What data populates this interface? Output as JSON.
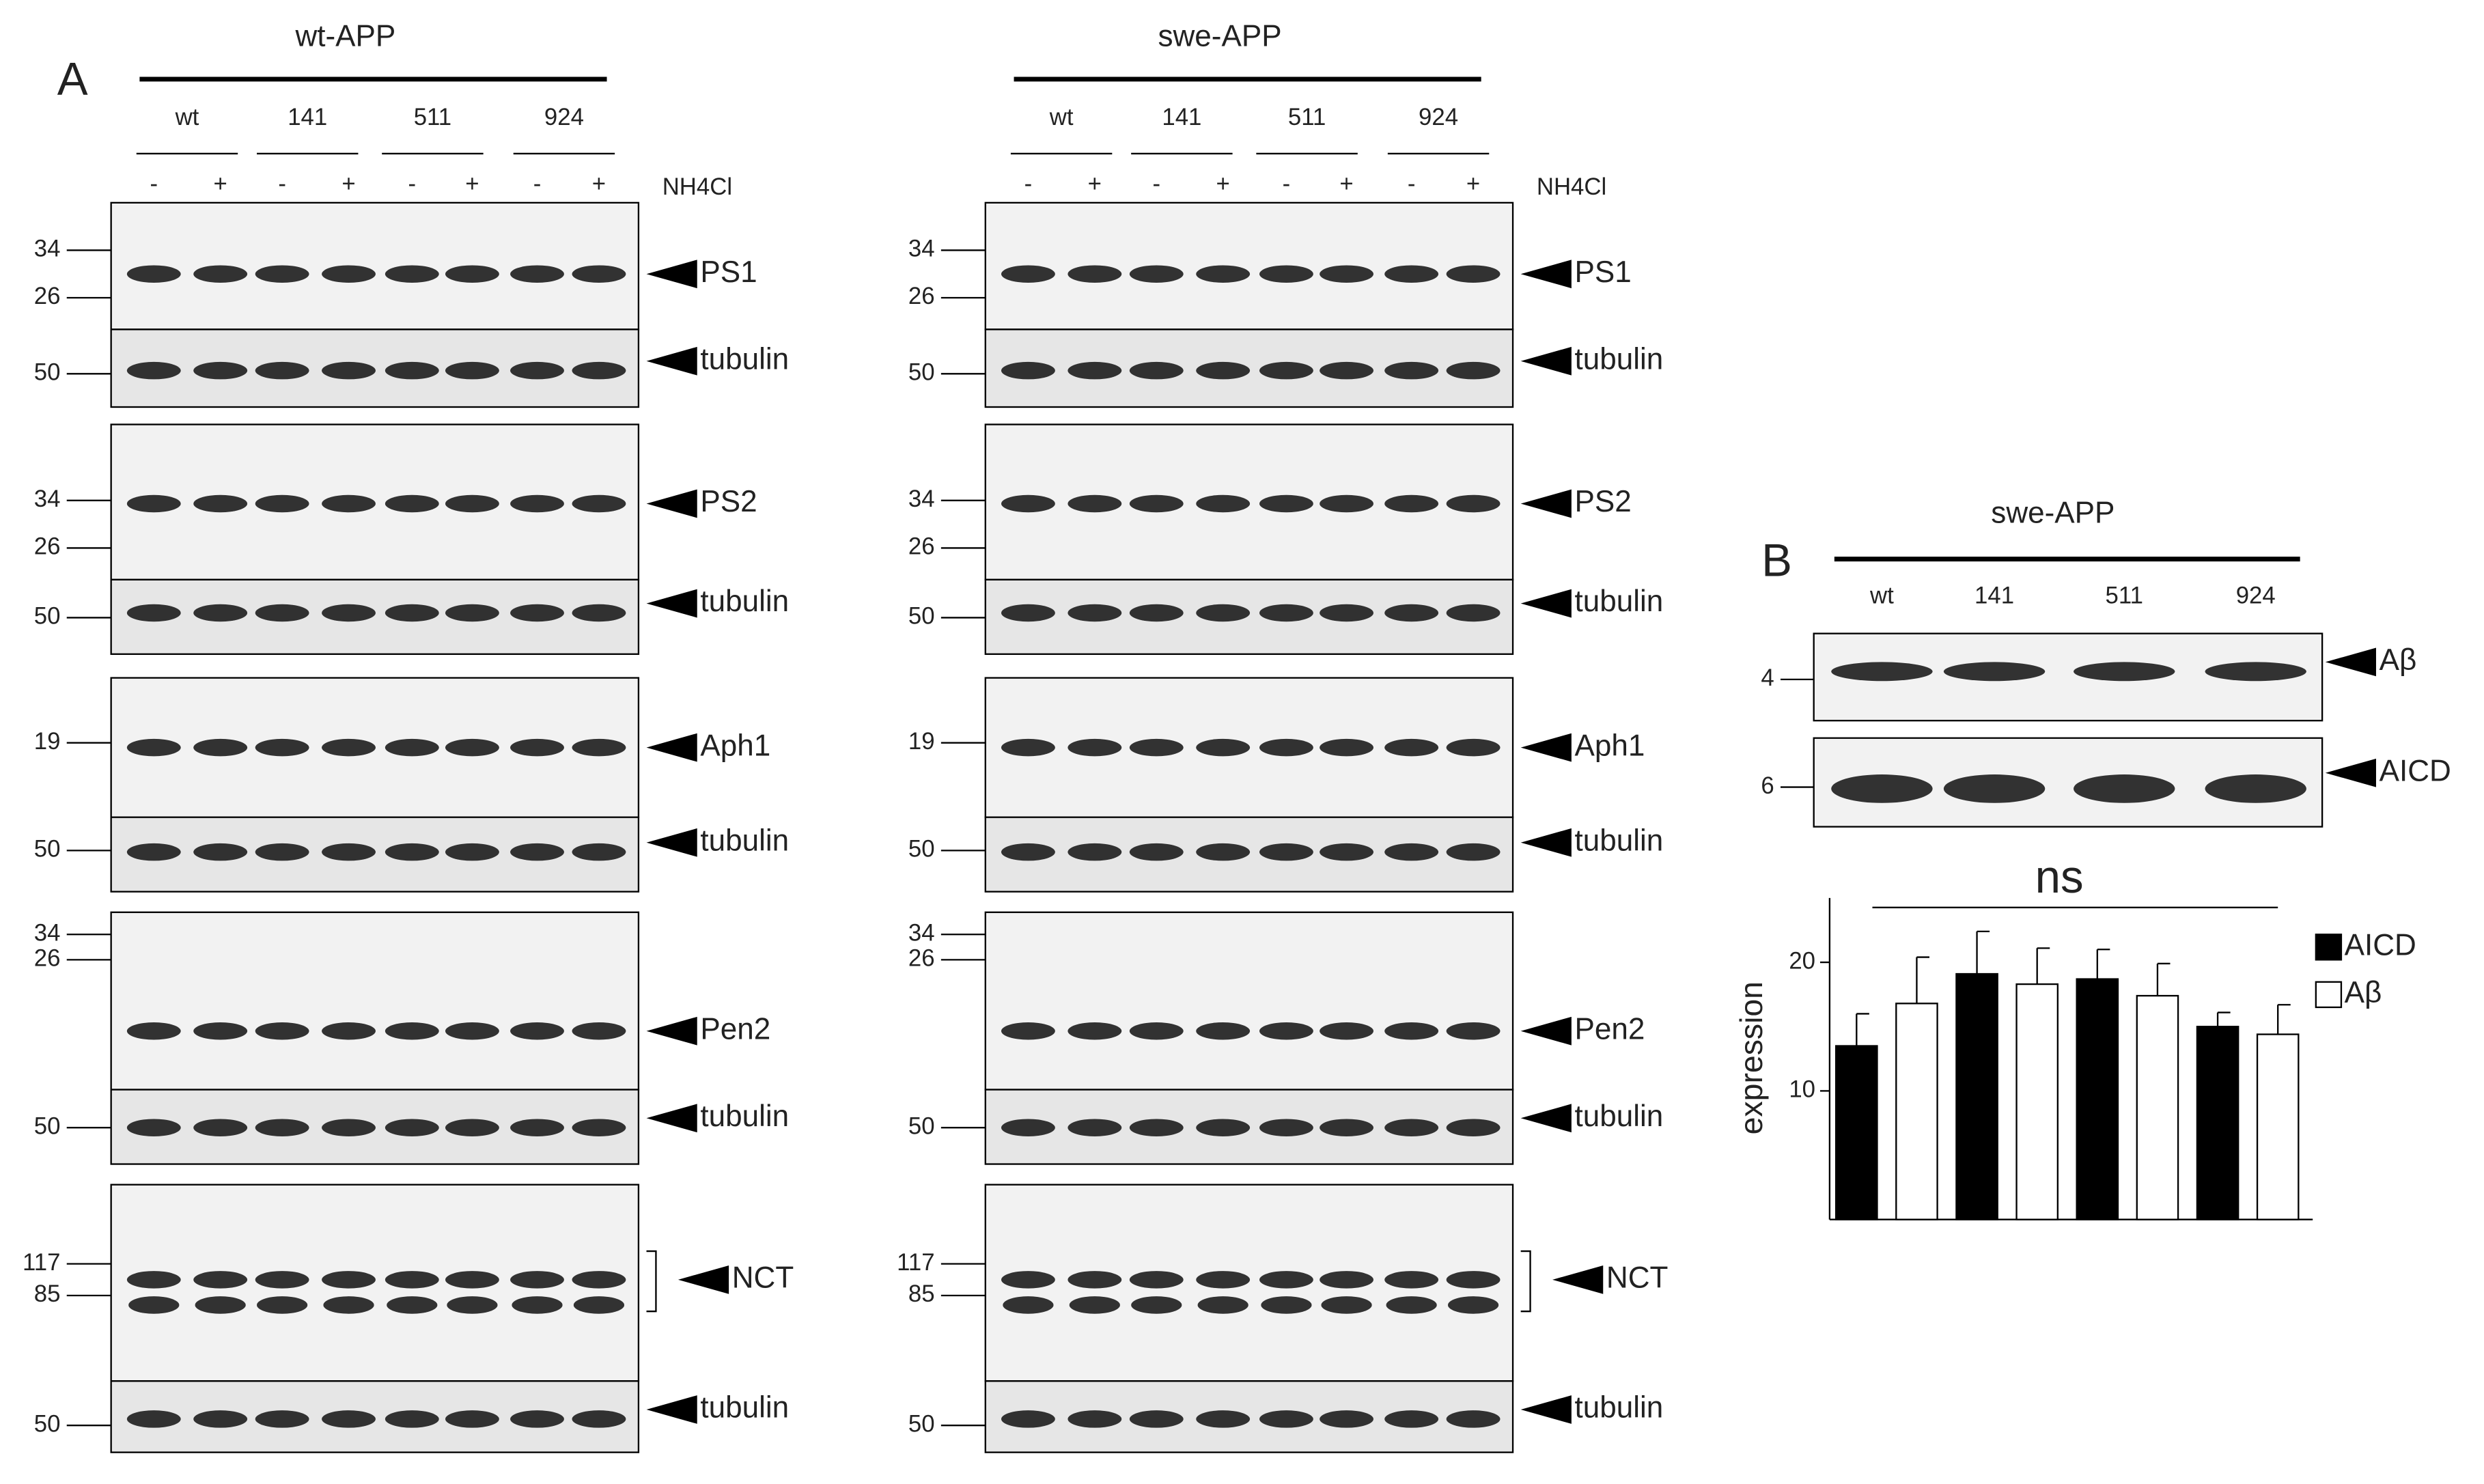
{
  "panel_a": {
    "label": "A",
    "treatment": "NH4Cl",
    "signs": [
      "-",
      "+"
    ],
    "groups": [
      {
        "name": "wt-APP",
        "lanes": [
          "wt",
          "141",
          "511",
          "924"
        ],
        "blots": [
          {
            "target": "PS1",
            "markers": [
              "34",
              "26"
            ],
            "loading": "tubulin",
            "loading_markers": [
              "50"
            ]
          },
          {
            "target": "PS2",
            "markers": [
              "34",
              "26"
            ],
            "loading": "tubulin",
            "loading_markers": [
              "50"
            ]
          },
          {
            "target": "Aph1",
            "markers": [
              "19"
            ],
            "loading": "tubulin",
            "loading_markers": [
              "50"
            ]
          },
          {
            "target": "Pen2",
            "markers": [
              "34",
              "26"
            ],
            "loading": "tubulin",
            "loading_markers": [
              "50"
            ]
          },
          {
            "target": "NCT",
            "markers": [
              "117",
              "85"
            ],
            "loading": "tubulin",
            "loading_markers": [
              "50"
            ]
          }
        ]
      },
      {
        "name": "swe-APP",
        "lanes": [
          "wt",
          "141",
          "511",
          "924"
        ],
        "blots": [
          {
            "target": "PS1",
            "markers": [
              "34",
              "26"
            ],
            "loading": "tubulin",
            "loading_markers": [
              "50"
            ]
          },
          {
            "target": "PS2",
            "markers": [
              "34",
              "26"
            ],
            "loading": "tubulin",
            "loading_markers": [
              "50"
            ]
          },
          {
            "target": "Aph1",
            "markers": [
              "19"
            ],
            "loading": "tubulin",
            "loading_markers": [
              "50"
            ]
          },
          {
            "target": "Pen2",
            "markers": [
              "34",
              "26"
            ],
            "loading": "tubulin",
            "loading_markers": [
              "50"
            ]
          },
          {
            "target": "NCT",
            "markers": [
              "117",
              "85"
            ],
            "loading": "tubulin",
            "loading_markers": [
              "50"
            ]
          }
        ]
      }
    ]
  },
  "panel_b": {
    "label": "B",
    "group": "swe-APP",
    "lanes": [
      "wt",
      "141",
      "511",
      "924"
    ],
    "blots": [
      {
        "target": "Aβ",
        "markers": [
          "4"
        ]
      },
      {
        "target": "AICD",
        "markers": [
          "6"
        ]
      }
    ]
  },
  "chart_data": {
    "type": "bar",
    "ylabel": "expression",
    "annotation": "ns",
    "legend": "right",
    "ylim": [
      0,
      25
    ],
    "yticks": [
      10,
      20
    ],
    "series": [
      {
        "name": "AICD",
        "color": "#000000",
        "values": [
          13.5,
          19.1,
          18.7,
          15.0
        ],
        "errors": [
          2.5,
          3.3,
          2.3,
          1.1
        ]
      },
      {
        "name": "Aβ",
        "color": "#ffffff",
        "values": [
          16.8,
          18.3,
          17.4,
          14.4
        ],
        "errors": [
          3.6,
          2.8,
          2.5,
          2.3
        ]
      }
    ]
  }
}
